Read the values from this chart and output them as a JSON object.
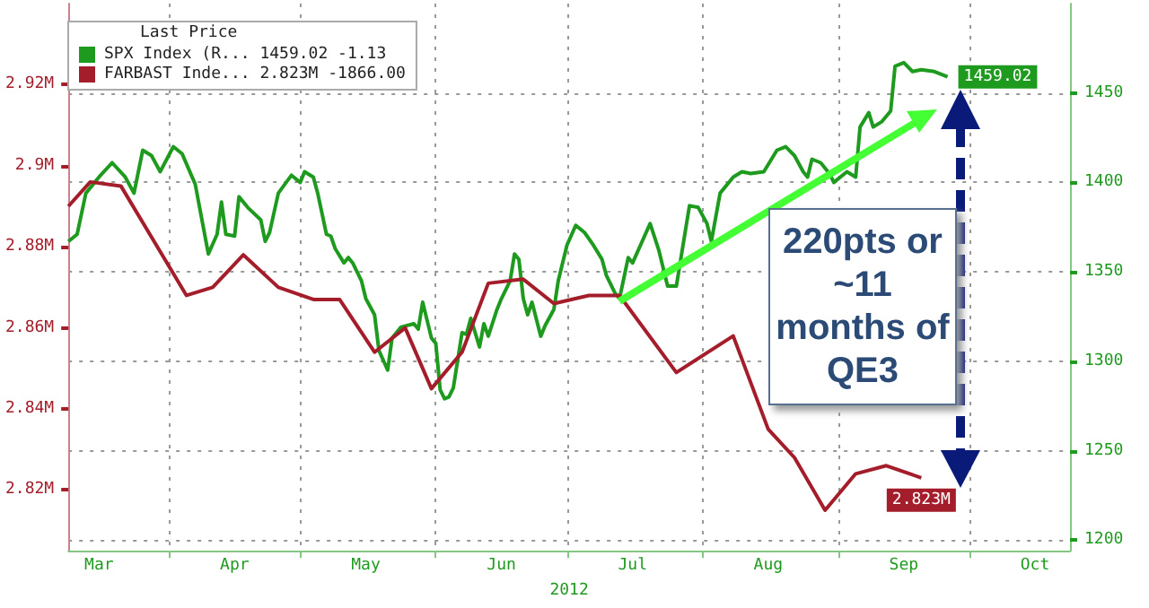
{
  "chart_data": {
    "type": "line",
    "legend_title": "Last Price",
    "legend": "top left",
    "xlabel": "2012",
    "marker": "none",
    "grid": true,
    "xlim": [
      "2012-03-09",
      "2012-10-24"
    ],
    "xticks": [
      {
        "value": "2012-04-01",
        "label": null
      },
      {
        "value": "2012-05-01",
        "label": null
      },
      {
        "value": "2012-06-01",
        "label": null
      },
      {
        "value": "2012-07-01",
        "label": null
      },
      {
        "value": "2012-08-01",
        "label": null
      },
      {
        "value": "2012-09-01",
        "label": null
      },
      {
        "value": "2012-10-01",
        "label": null
      },
      {
        "value": "2012-03-16",
        "label": "Mar"
      },
      {
        "value": "2012-04-16",
        "label": "Apr"
      },
      {
        "value": "2012-05-16",
        "label": "May"
      },
      {
        "value": "2012-06-16",
        "label": "Jun"
      },
      {
        "value": "2012-07-16",
        "label": "Jul"
      },
      {
        "value": "2012-08-16",
        "label": "Aug"
      },
      {
        "value": "2012-09-16",
        "label": "Sep"
      },
      {
        "value": "2012-10-16",
        "label": "Oct"
      }
    ],
    "ylim": [
      2.805,
      2.94
    ],
    "yticks": [
      {
        "value": 2.82,
        "label": "2.82M"
      },
      {
        "value": 2.84,
        "label": "2.84M"
      },
      {
        "value": 2.86,
        "label": "2.86M"
      },
      {
        "value": 2.88,
        "label": "2.88M"
      },
      {
        "value": 2.9,
        "label": "2.9M"
      },
      {
        "value": 2.92,
        "label": "2.92M"
      }
    ],
    "y2lim": [
      1194,
      1500
    ],
    "y2ticks": [
      1200,
      1250,
      1300,
      1350,
      1400,
      1450
    ],
    "annotations": [
      "220pts or ~11 months of QE3"
    ],
    "series": [
      {
        "name": "SPX Index (R... 1459.02 -1.13",
        "color": "#1e9a1e",
        "axis": "y2",
        "x": [
          "2012-03-09",
          "2012-03-11",
          "2012-03-13",
          "2012-03-16",
          "2012-03-19",
          "2012-03-22",
          "2012-03-24",
          "2012-03-26",
          "2012-03-28",
          "2012-03-30",
          "2012-04-02",
          "2012-04-04",
          "2012-04-07",
          "2012-04-08",
          "2012-04-10",
          "2012-04-12",
          "2012-04-13",
          "2012-04-14",
          "2012-04-16",
          "2012-04-17",
          "2012-04-19",
          "2012-04-22",
          "2012-04-23",
          "2012-04-24",
          "2012-04-26",
          "2012-04-29",
          "2012-05-01",
          "2012-05-02",
          "2012-05-04",
          "2012-05-05",
          "2012-05-07",
          "2012-05-08",
          "2012-05-09",
          "2012-05-11",
          "2012-05-12",
          "2012-05-13",
          "2012-05-15",
          "2012-05-16",
          "2012-05-18",
          "2012-05-19",
          "2012-05-21",
          "2012-05-22",
          "2012-05-24",
          "2012-05-27",
          "2012-05-28",
          "2012-05-29",
          "2012-05-31",
          "2012-06-01",
          "2012-06-02",
          "2012-06-03",
          "2012-06-04",
          "2012-06-05",
          "2012-06-07",
          "2012-06-08",
          "2012-06-09",
          "2012-06-11",
          "2012-06-12",
          "2012-06-13",
          "2012-06-15",
          "2012-06-16",
          "2012-06-18",
          "2012-06-19",
          "2012-06-20",
          "2012-06-21",
          "2012-06-22",
          "2012-06-23",
          "2012-06-25",
          "2012-06-26",
          "2012-06-28",
          "2012-06-29",
          "2012-07-01",
          "2012-07-03",
          "2012-07-05",
          "2012-07-07",
          "2012-07-09",
          "2012-07-10",
          "2012-07-12",
          "2012-07-13",
          "2012-07-15",
          "2012-07-16",
          "2012-07-20",
          "2012-07-22",
          "2012-07-24",
          "2012-07-26",
          "2012-07-29",
          "2012-07-31",
          "2012-08-02",
          "2012-08-03",
          "2012-08-05",
          "2012-08-08",
          "2012-08-10",
          "2012-08-12",
          "2012-08-15",
          "2012-08-18",
          "2012-08-20",
          "2012-08-22",
          "2012-08-24",
          "2012-08-25",
          "2012-08-26",
          "2012-08-28",
          "2012-08-30",
          "2012-08-31",
          "2012-09-03",
          "2012-09-05",
          "2012-09-06",
          "2012-09-08",
          "2012-09-09",
          "2012-09-11",
          "2012-09-13",
          "2012-09-14",
          "2012-09-16",
          "2012-09-18",
          "2012-09-20",
          "2012-09-23",
          "2012-09-26"
        ],
        "values": [
          1367,
          1371,
          1394,
          1403,
          1411,
          1403,
          1394,
          1418,
          1415,
          1406,
          1420,
          1416,
          1399,
          1386,
          1360,
          1371,
          1389,
          1371,
          1370,
          1392,
          1386,
          1379,
          1367,
          1372,
          1394,
          1404,
          1400,
          1406,
          1403,
          1394,
          1371,
          1370,
          1363,
          1355,
          1358,
          1355,
          1345,
          1335,
          1326,
          1306,
          1295,
          1313,
          1319,
          1321,
          1318,
          1333,
          1313,
          1310,
          1284,
          1279,
          1280,
          1285,
          1316,
          1315,
          1324,
          1308,
          1321,
          1314,
          1329,
          1335,
          1345,
          1360,
          1357,
          1335,
          1326,
          1333,
          1314,
          1320,
          1329,
          1345,
          1365,
          1376,
          1372,
          1365,
          1357,
          1348,
          1338,
          1335,
          1358,
          1355,
          1377,
          1362,
          1342,
          1342,
          1387,
          1386,
          1377,
          1367,
          1394,
          1403,
          1406,
          1405,
          1406,
          1418,
          1420,
          1415,
          1406,
          1403,
          1413,
          1411,
          1405,
          1400,
          1406,
          1403,
          1431,
          1439,
          1431,
          1434,
          1440,
          1465,
          1467,
          1462,
          1463,
          1462,
          1459.02
        ],
        "value_labels": [
          null,
          null,
          null,
          null,
          null,
          null,
          null,
          null,
          null,
          null,
          null,
          null,
          null,
          null,
          null,
          null,
          null,
          null,
          null,
          null,
          null,
          null,
          null,
          null,
          null,
          null,
          null,
          null,
          null,
          null,
          null,
          null,
          null,
          null,
          null,
          null,
          null,
          null,
          null,
          null,
          null,
          null,
          null,
          null,
          null,
          null,
          null,
          null,
          null,
          null,
          null,
          null,
          null,
          null,
          null,
          null,
          null,
          null,
          null,
          null,
          null,
          null,
          null,
          null,
          null,
          null,
          null,
          null,
          null,
          null,
          null,
          null,
          null,
          null,
          null,
          null,
          null,
          null,
          null,
          null,
          null,
          null,
          null,
          null,
          null,
          null,
          null,
          null,
          null,
          null,
          null,
          null,
          null,
          null,
          null,
          null,
          null,
          null,
          null,
          null,
          null,
          null,
          null,
          null,
          null,
          null,
          null,
          null,
          null,
          null,
          null,
          null,
          null,
          null,
          "1459.02"
        ]
      },
      {
        "name": "FARBAST Inde... 2.823M -1866.00",
        "color": "#a31d2b",
        "x": [
          "2012-03-09",
          "2012-03-14",
          "2012-03-21",
          "2012-04-05",
          "2012-04-11",
          "2012-04-18",
          "2012-04-26",
          "2012-05-04",
          "2012-05-10",
          "2012-05-18",
          "2012-05-25",
          "2012-05-31",
          "2012-06-07",
          "2012-06-13",
          "2012-06-21",
          "2012-06-28",
          "2012-07-06",
          "2012-07-13",
          "2012-07-26",
          "2012-08-08",
          "2012-08-16",
          "2012-08-22",
          "2012-08-29",
          "2012-09-05",
          "2012-09-12",
          "2012-09-20"
        ],
        "values": [
          2.89,
          2.896,
          2.895,
          2.868,
          2.87,
          2.878,
          2.87,
          2.867,
          2.867,
          2.854,
          2.86,
          2.845,
          2.854,
          2.871,
          2.872,
          2.866,
          2.868,
          2.868,
          2.849,
          2.858,
          2.835,
          2.828,
          2.815,
          2.824,
          2.826,
          2.823
        ],
        "value_labels": [
          null,
          null,
          null,
          null,
          null,
          null,
          null,
          null,
          null,
          null,
          null,
          null,
          null,
          null,
          null,
          null,
          null,
          null,
          null,
          null,
          null,
          null,
          null,
          null,
          null,
          "2.823M"
        ]
      }
    ]
  }
}
